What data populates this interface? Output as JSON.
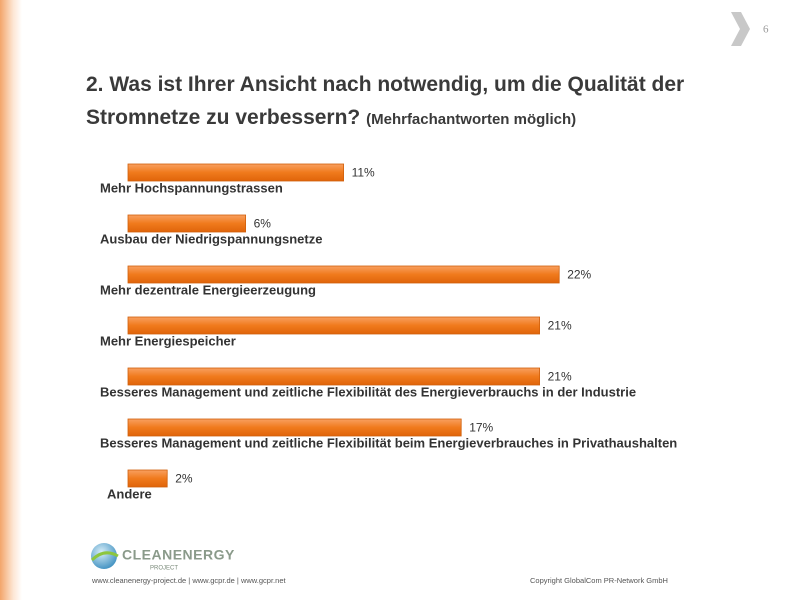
{
  "slide": {
    "page_number": "6",
    "logo": "CLEANENERGY",
    "logo_sub": "PROJECT",
    "footer_links": "www.cleanenergy-project.de | www.gcpr.de | www.gcpr.net",
    "copyright": "Copyright GlobalCom PR-Network GmbH"
  },
  "chart_data": {
    "type": "bar",
    "orientation": "horizontal",
    "title": "2. Was ist Ihrer Ansicht nach notwendig, um die Qualität der Stromnetze zu verbessern?",
    "subtitle": "(Mehrfachantworten möglich)",
    "categories": [
      "Mehr Hochspannungstrassen",
      "Ausbau der Niedrigspannungsnetze",
      "Mehr dezentrale Energieerzeugung",
      "Mehr Energiespeicher",
      "Besseres Management und zeitliche Flexibilität des Energieverbrauchs in der Industrie",
      "Besseres Management und zeitliche Flexibilität beim Energieverbrauches in Privathaushalten",
      "Andere"
    ],
    "values": [
      11,
      6,
      22,
      21,
      21,
      17,
      2
    ],
    "value_labels": [
      "11%",
      "6%",
      "22%",
      "21%",
      "21%",
      "17%",
      "2%"
    ],
    "color": "#f07a1c"
  }
}
